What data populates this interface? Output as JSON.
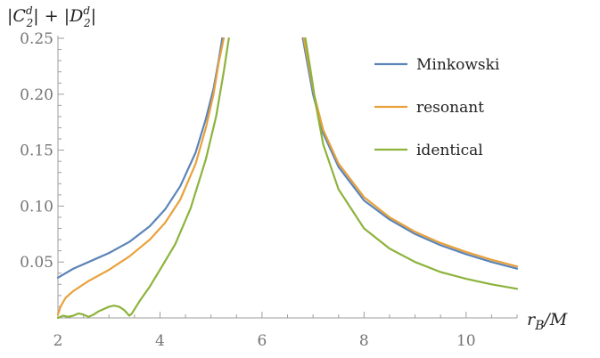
{
  "chart_data": {
    "type": "line",
    "title": "",
    "xlabel": "r_B/M",
    "ylabel": "|C_2^d| + |D_2^d|",
    "xlim": [
      2,
      11
    ],
    "ylim": [
      0,
      0.25
    ],
    "x_ticks": [
      2,
      4,
      6,
      8,
      10
    ],
    "x_tick_labels": [
      "2",
      "4",
      "6",
      "8",
      "10"
    ],
    "y_ticks": [
      0.05,
      0.1,
      0.15,
      0.2,
      0.25
    ],
    "y_tick_labels": [
      "0.05",
      "0.10",
      "0.15",
      "0.20",
      "0.25"
    ],
    "legend_position": "top-right",
    "grid": false,
    "series": [
      {
        "name": "Minkowski",
        "color": "#5b84b8",
        "segments": [
          [
            [
              2.0,
              0.036
            ],
            [
              2.3,
              0.044
            ],
            [
              2.7,
              0.052
            ],
            [
              3.0,
              0.058
            ],
            [
              3.4,
              0.068
            ],
            [
              3.8,
              0.082
            ],
            [
              4.1,
              0.097
            ],
            [
              4.4,
              0.118
            ],
            [
              4.7,
              0.148
            ],
            [
              4.9,
              0.178
            ],
            [
              5.05,
              0.205
            ],
            [
              5.15,
              0.23
            ],
            [
              5.22,
              0.25
            ]
          ],
          [
            [
              6.8,
              0.25
            ],
            [
              6.9,
              0.225
            ],
            [
              7.0,
              0.2
            ],
            [
              7.2,
              0.165
            ],
            [
              7.5,
              0.135
            ],
            [
              8.0,
              0.105
            ],
            [
              8.5,
              0.088
            ],
            [
              9.0,
              0.075
            ],
            [
              9.5,
              0.065
            ],
            [
              10.0,
              0.057
            ],
            [
              10.5,
              0.05
            ],
            [
              11.0,
              0.044
            ]
          ]
        ]
      },
      {
        "name": "resonant",
        "color": "#e8a13b",
        "segments": [
          [
            [
              2.0,
              0.003
            ],
            [
              2.05,
              0.01
            ],
            [
              2.15,
              0.018
            ],
            [
              2.3,
              0.024
            ],
            [
              2.6,
              0.033
            ],
            [
              3.0,
              0.043
            ],
            [
              3.4,
              0.055
            ],
            [
              3.8,
              0.07
            ],
            [
              4.1,
              0.085
            ],
            [
              4.4,
              0.106
            ],
            [
              4.7,
              0.138
            ],
            [
              4.9,
              0.17
            ],
            [
              5.05,
              0.2
            ],
            [
              5.15,
              0.228
            ],
            [
              5.25,
              0.25
            ]
          ],
          [
            [
              6.82,
              0.25
            ],
            [
              6.92,
              0.225
            ],
            [
              7.02,
              0.2
            ],
            [
              7.2,
              0.168
            ],
            [
              7.5,
              0.138
            ],
            [
              8.0,
              0.108
            ],
            [
              8.5,
              0.09
            ],
            [
              9.0,
              0.077
            ],
            [
              9.5,
              0.067
            ],
            [
              10.0,
              0.059
            ],
            [
              10.5,
              0.052
            ],
            [
              11.0,
              0.046
            ]
          ]
        ]
      },
      {
        "name": "identical",
        "color": "#8db33c",
        "segments": [
          [
            [
              2.0,
              0.0
            ],
            [
              2.1,
              0.002
            ],
            [
              2.2,
              0.001
            ],
            [
              2.3,
              0.002
            ],
            [
              2.4,
              0.004
            ],
            [
              2.5,
              0.003
            ],
            [
              2.6,
              0.001
            ],
            [
              2.7,
              0.003
            ],
            [
              2.8,
              0.006
            ],
            [
              2.9,
              0.008
            ],
            [
              3.0,
              0.01
            ],
            [
              3.1,
              0.011
            ],
            [
              3.2,
              0.01
            ],
            [
              3.3,
              0.007
            ],
            [
              3.4,
              0.002
            ],
            [
              3.45,
              0.004
            ],
            [
              3.6,
              0.015
            ],
            [
              3.8,
              0.028
            ],
            [
              4.0,
              0.043
            ],
            [
              4.3,
              0.066
            ],
            [
              4.6,
              0.098
            ],
            [
              4.9,
              0.142
            ],
            [
              5.1,
              0.18
            ],
            [
              5.25,
              0.22
            ],
            [
              5.35,
              0.25
            ]
          ],
          [
            [
              6.85,
              0.25
            ],
            [
              6.95,
              0.222
            ],
            [
              7.05,
              0.192
            ],
            [
              7.2,
              0.155
            ],
            [
              7.5,
              0.115
            ],
            [
              8.0,
              0.08
            ],
            [
              8.5,
              0.062
            ],
            [
              9.0,
              0.05
            ],
            [
              9.5,
              0.041
            ],
            [
              10.0,
              0.035
            ],
            [
              10.5,
              0.03
            ],
            [
              11.0,
              0.026
            ]
          ]
        ]
      }
    ]
  }
}
